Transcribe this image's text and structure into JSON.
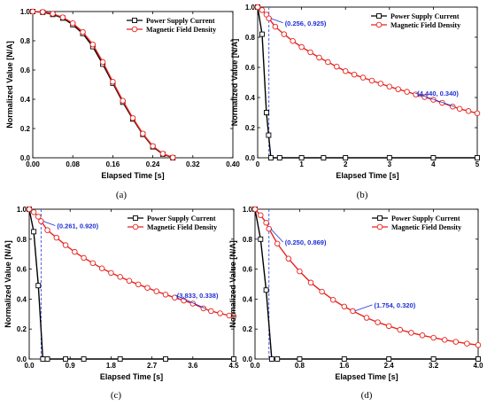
{
  "colors": {
    "current": "#000000",
    "field": "#e8231e",
    "annotation": "#1f2fd6",
    "dashed": "#3b4fe0"
  },
  "chart_data": [
    {
      "panel": "(a)",
      "type": "line",
      "xlabel": "Elapsed Time [s]",
      "ylabel": "Normalized Value [N/A]",
      "xlim": [
        0.0,
        0.4
      ],
      "ylim": [
        0.0,
        1.0
      ],
      "xticks": [
        0.0,
        0.08,
        0.16,
        0.24,
        0.32,
        0.4
      ],
      "xtick_labels": [
        "0.00",
        "0.08",
        "0.16",
        "0.24",
        "0.32",
        "0.40"
      ],
      "yticks": [
        0.0,
        0.2,
        0.4,
        0.6,
        0.8,
        1.0
      ],
      "ytick_labels": [
        "0.0",
        "0.2",
        "0.4",
        "0.6",
        "0.8",
        "1.0"
      ],
      "legend": {
        "position": "top-right"
      },
      "series": [
        {
          "name": "Power Supply Current",
          "marker": "square",
          "x": [
            0.0,
            0.02,
            0.04,
            0.06,
            0.08,
            0.1,
            0.12,
            0.14,
            0.16,
            0.18,
            0.2,
            0.22,
            0.24,
            0.26,
            0.28
          ],
          "y": [
            1.0,
            0.995,
            0.98,
            0.955,
            0.91,
            0.85,
            0.76,
            0.64,
            0.51,
            0.38,
            0.265,
            0.16,
            0.075,
            0.025,
            0.0
          ]
        },
        {
          "name": "Magnetic Field Density",
          "marker": "circle",
          "x": [
            0.0,
            0.02,
            0.04,
            0.06,
            0.08,
            0.1,
            0.12,
            0.14,
            0.16,
            0.18,
            0.2,
            0.22,
            0.24,
            0.26,
            0.28
          ],
          "y": [
            1.0,
            0.997,
            0.985,
            0.96,
            0.92,
            0.86,
            0.775,
            0.655,
            0.52,
            0.39,
            0.272,
            0.165,
            0.08,
            0.028,
            0.002
          ]
        }
      ]
    },
    {
      "panel": "(b)",
      "type": "line",
      "xlabel": "Elapsed Time [s]",
      "ylabel": "Normalized Value [N/A]",
      "xlim": [
        0,
        5
      ],
      "ylim": [
        0.0,
        1.0
      ],
      "xticks": [
        0,
        1,
        2,
        3,
        4,
        5
      ],
      "xtick_labels": [
        "0",
        "1",
        "2",
        "3",
        "4",
        "5"
      ],
      "yticks": [
        0.0,
        0.2,
        0.4,
        0.6,
        0.8,
        1.0
      ],
      "ytick_labels": [
        "0.0",
        "0.2",
        "0.4",
        "0.6",
        "0.8",
        "1.0"
      ],
      "legend": {
        "position": "top-right"
      },
      "vline_x": 0.256,
      "annotations": [
        {
          "text": "(0.256, 0.925)",
          "x": 0.256,
          "y": 0.925
        },
        {
          "text": "(4.440, 0.340)",
          "x": 4.44,
          "y": 0.34
        }
      ],
      "series": [
        {
          "name": "Power Supply Current",
          "marker": "square",
          "x": [
            0.0,
            0.1,
            0.2,
            0.25,
            0.3,
            0.5,
            1.0,
            1.5,
            2.0,
            3.0,
            4.0,
            5.0
          ],
          "y": [
            1.0,
            0.82,
            0.3,
            0.15,
            0.0,
            0.0,
            0.0,
            0.0,
            0.0,
            0.0,
            0.0,
            0.0
          ]
        },
        {
          "name": "Magnetic Field Density",
          "marker": "circle",
          "x": [
            0.0,
            0.1,
            0.2,
            0.256,
            0.4,
            0.6,
            0.8,
            1.0,
            1.2,
            1.4,
            1.6,
            1.8,
            2.0,
            2.2,
            2.4,
            2.6,
            2.8,
            3.0,
            3.2,
            3.4,
            3.6,
            3.8,
            4.0,
            4.2,
            4.44,
            4.6,
            4.8,
            5.0
          ],
          "y": [
            1.0,
            0.98,
            0.95,
            0.925,
            0.87,
            0.82,
            0.775,
            0.735,
            0.7,
            0.665,
            0.635,
            0.605,
            0.575,
            0.552,
            0.532,
            0.512,
            0.492,
            0.472,
            0.455,
            0.438,
            0.42,
            0.403,
            0.385,
            0.365,
            0.34,
            0.325,
            0.31,
            0.295
          ]
        }
      ]
    },
    {
      "panel": "(c)",
      "type": "line",
      "xlabel": "Elapsed Time [s]",
      "ylabel": "Normalized Value [N/A]",
      "xlim": [
        0.0,
        4.5
      ],
      "ylim": [
        0.0,
        1.0
      ],
      "xticks": [
        0.0,
        0.9,
        1.8,
        2.7,
        3.6,
        4.5
      ],
      "xtick_labels": [
        "0.0",
        "0.9",
        "1.8",
        "2.7",
        "3.6",
        "4.5"
      ],
      "yticks": [
        0.0,
        0.2,
        0.4,
        0.6,
        0.8,
        1.0
      ],
      "ytick_labels": [
        "0.0",
        "0.2",
        "0.4",
        "0.6",
        "0.8",
        "1.0"
      ],
      "legend": {
        "position": "top-right"
      },
      "vline_x": 0.261,
      "annotations": [
        {
          "text": "(0.261, 0.920)",
          "x": 0.261,
          "y": 0.92
        },
        {
          "text": "(3.833, 0.338)",
          "x": 3.833,
          "y": 0.338
        }
      ],
      "series": [
        {
          "name": "Power Supply Current",
          "marker": "square",
          "x": [
            0.0,
            0.1,
            0.2,
            0.3,
            0.4,
            0.8,
            1.2,
            2.0,
            3.0,
            4.5
          ],
          "y": [
            1.0,
            0.85,
            0.49,
            0.0,
            0.0,
            0.0,
            0.0,
            0.0,
            0.0,
            0.0
          ]
        },
        {
          "name": "Magnetic Field Density",
          "marker": "circle",
          "x": [
            0.0,
            0.1,
            0.2,
            0.261,
            0.4,
            0.6,
            0.8,
            1.0,
            1.2,
            1.4,
            1.6,
            1.8,
            2.0,
            2.2,
            2.4,
            2.6,
            2.8,
            3.0,
            3.2,
            3.4,
            3.6,
            3.833,
            4.0,
            4.2,
            4.4,
            4.5
          ],
          "y": [
            1.0,
            0.98,
            0.95,
            0.92,
            0.86,
            0.81,
            0.76,
            0.715,
            0.675,
            0.64,
            0.605,
            0.575,
            0.548,
            0.522,
            0.498,
            0.475,
            0.452,
            0.43,
            0.41,
            0.39,
            0.37,
            0.338,
            0.32,
            0.305,
            0.29,
            0.285
          ]
        }
      ]
    },
    {
      "panel": "(d)",
      "type": "line",
      "xlabel": "Elapsed Time [s]",
      "ylabel": "Normalized Value [N/A]",
      "xlim": [
        0.0,
        4.0
      ],
      "ylim": [
        0.0,
        1.0
      ],
      "xticks": [
        0.0,
        0.8,
        1.6,
        2.4,
        3.2,
        4.0
      ],
      "xtick_labels": [
        "0.0",
        "0.8",
        "1.6",
        "2.4",
        "3.2",
        "4.0"
      ],
      "yticks": [
        0.0,
        0.2,
        0.4,
        0.6,
        0.8,
        1.0
      ],
      "ytick_labels": [
        "0.0",
        "0.2",
        "0.4",
        "0.6",
        "0.8",
        "1.0"
      ],
      "legend": {
        "position": "top-right"
      },
      "vline_x": 0.25,
      "annotations": [
        {
          "text": "(0.250, 0.869)",
          "x": 0.25,
          "y": 0.869
        },
        {
          "text": "(1.754, 0.320)",
          "x": 1.754,
          "y": 0.32
        }
      ],
      "series": [
        {
          "name": "Power Supply Current",
          "marker": "square",
          "x": [
            0.0,
            0.1,
            0.2,
            0.3,
            0.4,
            0.8,
            1.6,
            2.4,
            3.2,
            4.0
          ],
          "y": [
            1.0,
            0.8,
            0.46,
            0.0,
            0.0,
            0.0,
            0.0,
            0.0,
            0.0,
            0.0
          ]
        },
        {
          "name": "Magnetic Field Density",
          "marker": "circle",
          "x": [
            0.0,
            0.1,
            0.2,
            0.25,
            0.4,
            0.6,
            0.8,
            1.0,
            1.2,
            1.4,
            1.6,
            1.754,
            2.0,
            2.2,
            2.4,
            2.6,
            2.8,
            3.0,
            3.2,
            3.4,
            3.6,
            3.8,
            4.0
          ],
          "y": [
            1.0,
            0.96,
            0.91,
            0.869,
            0.77,
            0.67,
            0.585,
            0.51,
            0.45,
            0.395,
            0.35,
            0.32,
            0.275,
            0.245,
            0.22,
            0.195,
            0.175,
            0.158,
            0.142,
            0.128,
            0.115,
            0.103,
            0.093
          ]
        }
      ]
    }
  ]
}
